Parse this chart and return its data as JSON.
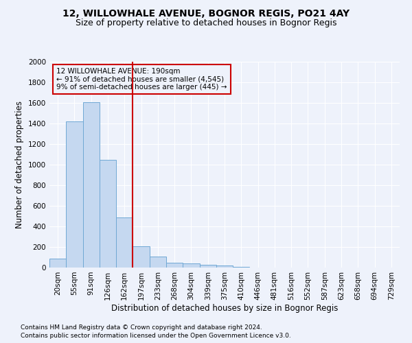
{
  "title": "12, WILLOWHALE AVENUE, BOGNOR REGIS, PO21 4AY",
  "subtitle": "Size of property relative to detached houses in Bognor Regis",
  "xlabel": "Distribution of detached houses by size in Bognor Regis",
  "ylabel": "Number of detached properties",
  "categories": [
    "20sqm",
    "55sqm",
    "91sqm",
    "126sqm",
    "162sqm",
    "197sqm",
    "233sqm",
    "268sqm",
    "304sqm",
    "339sqm",
    "375sqm",
    "410sqm",
    "446sqm",
    "481sqm",
    "516sqm",
    "552sqm",
    "587sqm",
    "623sqm",
    "658sqm",
    "694sqm",
    "729sqm"
  ],
  "values": [
    85,
    1420,
    1610,
    1045,
    490,
    205,
    105,
    50,
    40,
    25,
    20,
    10,
    0,
    0,
    0,
    0,
    0,
    0,
    0,
    0,
    0
  ],
  "bar_color": "#c5d8f0",
  "bar_edge_color": "#6fa8d4",
  "vline_color": "#cc0000",
  "annotation_line1": "12 WILLOWHALE AVENUE: 190sqm",
  "annotation_line2": "← 91% of detached houses are smaller (4,545)",
  "annotation_line3": "9% of semi-detached houses are larger (445) →",
  "annotation_box_color": "#cc0000",
  "ylim": [
    0,
    2000
  ],
  "yticks": [
    0,
    200,
    400,
    600,
    800,
    1000,
    1200,
    1400,
    1600,
    1800,
    2000
  ],
  "footnote1": "Contains HM Land Registry data © Crown copyright and database right 2024.",
  "footnote2": "Contains public sector information licensed under the Open Government Licence v3.0.",
  "background_color": "#eef2fb",
  "grid_color": "#ffffff",
  "title_fontsize": 10,
  "subtitle_fontsize": 9,
  "axis_label_fontsize": 8.5,
  "tick_fontsize": 7.5,
  "footnote_fontsize": 6.5
}
